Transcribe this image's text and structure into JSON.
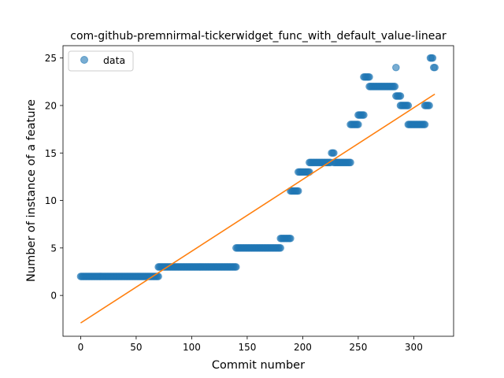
{
  "chart_data": {
    "type": "scatter",
    "title": "com-github-premnirmal-tickerwidget_func_with_default_value-linear",
    "xlabel": "Commit number",
    "ylabel": "Number of instance of a feature",
    "xlim": [
      -15.9,
      335.9
    ],
    "ylim": [
      -4.3,
      26.3
    ],
    "xticks": [
      0,
      50,
      100,
      150,
      200,
      250,
      300
    ],
    "yticks": [
      0,
      5,
      10,
      15,
      20,
      25
    ],
    "grid": false,
    "legend": {
      "placement": "top-left",
      "entries": [
        "data"
      ]
    },
    "colors": {
      "points": "#1f77b4",
      "fit": "#ff7f0e"
    },
    "series": [
      {
        "name": "data",
        "kind": "scatter",
        "segments": [
          {
            "x_start": 0,
            "x_end": 70,
            "y": 2
          },
          {
            "x_start": 70,
            "x_end": 140,
            "y": 3
          },
          {
            "x_start": 140,
            "x_end": 180,
            "y": 5
          },
          {
            "x_start": 180,
            "x_end": 189,
            "y": 6
          },
          {
            "x_start": 189,
            "x_end": 196,
            "y": 11
          },
          {
            "x_start": 196,
            "x_end": 206,
            "y": 13
          },
          {
            "x_start": 206,
            "x_end": 225,
            "y": 14
          },
          {
            "x_start": 226,
            "x_end": 228,
            "y": 15
          },
          {
            "x_start": 228,
            "x_end": 243,
            "y": 14
          },
          {
            "x_start": 243,
            "x_end": 250,
            "y": 18
          },
          {
            "x_start": 250,
            "x_end": 255,
            "y": 19
          },
          {
            "x_start": 255,
            "x_end": 260,
            "y": 23
          },
          {
            "x_start": 260,
            "x_end": 283,
            "y": 22
          },
          {
            "x_start": 284,
            "x_end": 284,
            "y": 24
          },
          {
            "x_start": 284,
            "x_end": 288,
            "y": 21
          },
          {
            "x_start": 288,
            "x_end": 295,
            "y": 20
          },
          {
            "x_start": 295,
            "x_end": 310,
            "y": 18
          },
          {
            "x_start": 310,
            "x_end": 314,
            "y": 20
          },
          {
            "x_start": 315,
            "x_end": 317,
            "y": 25
          },
          {
            "x_start": 318,
            "x_end": 319,
            "y": 24
          }
        ]
      },
      {
        "name": "",
        "kind": "line",
        "x": [
          0,
          319
        ],
        "y": [
          -2.9,
          21.2
        ]
      }
    ]
  }
}
